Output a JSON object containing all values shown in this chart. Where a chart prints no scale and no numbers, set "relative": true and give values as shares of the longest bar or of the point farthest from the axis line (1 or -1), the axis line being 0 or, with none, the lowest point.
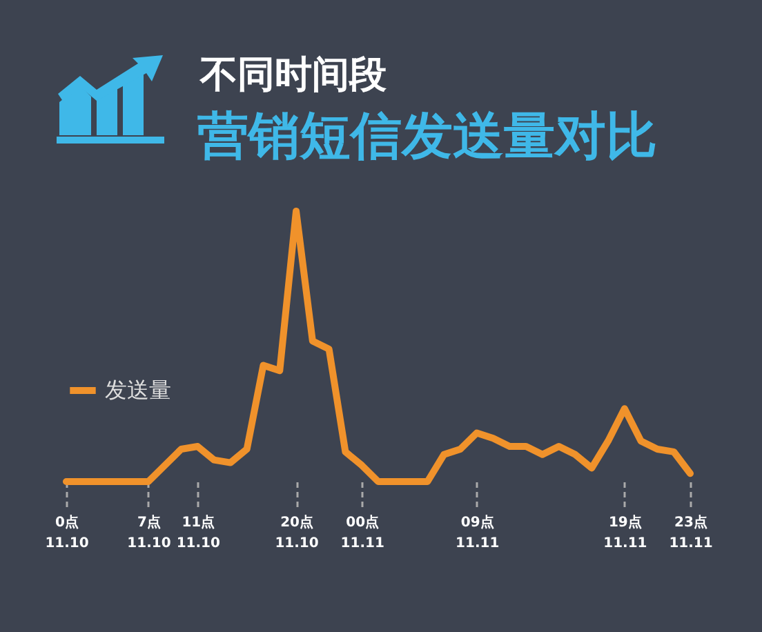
{
  "chart_data": {
    "type": "line",
    "title": "不同时间段",
    "subtitle": "营销短信发送量对比",
    "relative": true,
    "legend": "left",
    "categories": [
      "0点\n11.10",
      null,
      null,
      null,
      null,
      "7点\n11.10",
      null,
      null,
      "11点\n11.10",
      null,
      null,
      null,
      null,
      null,
      "20点\n11.10",
      null,
      null,
      null,
      "00点\n11.11",
      null,
      null,
      null,
      null,
      null,
      null,
      "09点\n11.11",
      null,
      null,
      null,
      null,
      null,
      null,
      null,
      null,
      "19点\n11.11",
      null,
      null,
      null,
      "23点\n11.11"
    ],
    "series": [
      {
        "name": "发送量",
        "color": "#f0922b",
        "values": [
          0,
          0,
          0,
          0,
          0,
          0,
          0.06,
          0.12,
          0.13,
          0.08,
          0.07,
          0.12,
          0.43,
          0.41,
          1.0,
          0.52,
          0.49,
          0.11,
          0.06,
          0,
          0,
          0,
          0,
          0.1,
          0.12,
          0.18,
          0.16,
          0.13,
          0.13,
          0.1,
          0.13,
          0.1,
          0.05,
          0.15,
          0.27,
          0.15,
          0.12,
          0.11,
          0.03
        ]
      }
    ]
  }
}
